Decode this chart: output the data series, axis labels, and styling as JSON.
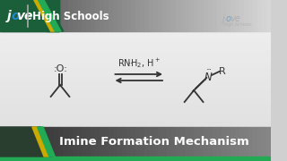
{
  "title_bar_text": "High Schools",
  "bottom_title": "Imine Formation Mechanism",
  "header_bg_left": "#555555",
  "header_bg_right": "#cccccc",
  "header_green_dark": "#1a5e3a",
  "header_green_light": "#22aa55",
  "bottom_bg_dark": "#2a3e30",
  "bottom_bg_mid": "#3a3a3a",
  "bottom_bg_right": "#888888",
  "bottom_title_color": "#ffffff",
  "main_bg_top": "#d8d8d8",
  "main_bg_bottom": "#e8e8e8",
  "jove_o_color": "#2288cc",
  "text_color": "#333333",
  "reagent_text": "RNH₂, H⁺",
  "aldehyde_label": ":O:",
  "imine_N_label": "N",
  "imine_R_label": "R",
  "yellow_stripe": "#ccaa00",
  "green_stripe": "#22aa55"
}
